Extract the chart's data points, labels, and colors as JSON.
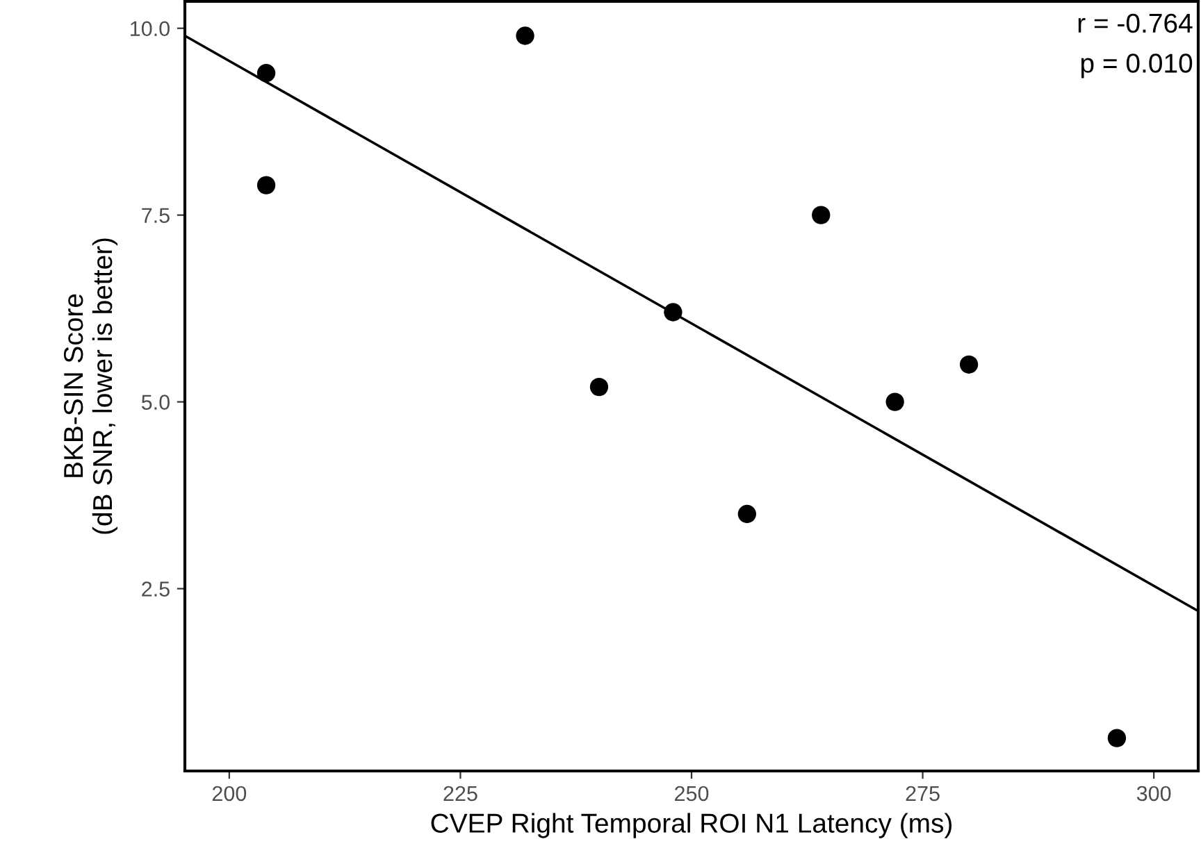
{
  "chart_data": {
    "type": "scatter",
    "xlabel": "CVEP Right Temporal ROI N1 Latency (ms)",
    "ylabel": "BKB-SIN Score\n(dB SNR, lower is better)",
    "annotations": [
      "r = -0.764",
      "p = 0.010"
    ],
    "xlim": [
      195.2,
      304.8
    ],
    "ylim": [
      0.06,
      10.36
    ],
    "xticks": [
      200,
      225,
      250,
      275,
      300
    ],
    "yticks": [
      {
        "value": 2.5,
        "label": "2.5"
      },
      {
        "value": 5,
        "label": "5.0"
      },
      {
        "value": 7.5,
        "label": "7.5"
      },
      {
        "value": 10,
        "label": "10.0"
      }
    ],
    "grid": false,
    "marker": "circle",
    "series": [
      {
        "color": "#000000",
        "x": [
          204,
          204,
          232,
          240,
          248,
          256,
          264,
          272,
          280,
          296
        ],
        "values": [
          9.4,
          7.9,
          9.9,
          5.2,
          6.2,
          3.5,
          7.5,
          5.0,
          5.5,
          0.5
        ]
      },
      {
        "type": "line",
        "color": "#000000",
        "x": [
          195.2,
          304.8
        ],
        "values": [
          9.9,
          2.2
        ],
        "line_style": "solid",
        "marker": "none"
      }
    ]
  }
}
